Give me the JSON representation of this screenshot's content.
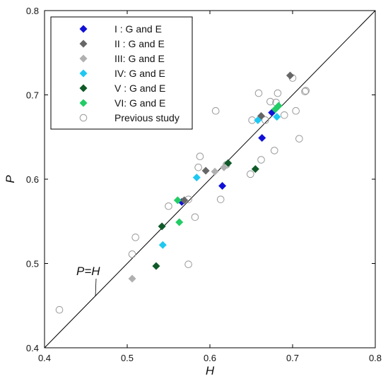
{
  "chart_data": {
    "type": "scatter",
    "title": "",
    "xlabel": "H",
    "ylabel": "P",
    "xlim": [
      0.4,
      0.8
    ],
    "ylim": [
      0.4,
      0.8
    ],
    "xticks": [
      "0.4",
      "0.5",
      "0.6",
      "0.7",
      "0.8"
    ],
    "yticks": [
      "0.4",
      "0.5",
      "0.6",
      "0.7",
      "0.8"
    ],
    "grid": false,
    "legend_position": "top-left",
    "reference_line": {
      "label": "P=H",
      "from": [
        0.4,
        0.4
      ],
      "to": [
        0.8,
        0.8
      ]
    },
    "series": [
      {
        "name": "I  : G and E",
        "marker": "diamond",
        "color": "#1010d8",
        "points": [
          [
            0.566,
            0.573
          ],
          [
            0.615,
            0.592
          ],
          [
            0.663,
            0.649
          ],
          [
            0.675,
            0.679
          ]
        ]
      },
      {
        "name": "II : G and E",
        "marker": "diamond",
        "color": "#666666",
        "points": [
          [
            0.569,
            0.575
          ],
          [
            0.595,
            0.61
          ],
          [
            0.662,
            0.675
          ],
          [
            0.697,
            0.723
          ]
        ]
      },
      {
        "name": "III: G and E",
        "marker": "diamond",
        "color": "#b0b0b0",
        "points": [
          [
            0.506,
            0.482
          ],
          [
            0.606,
            0.609
          ],
          [
            0.617,
            0.614
          ]
        ]
      },
      {
        "name": "IV: G and E",
        "marker": "diamond",
        "color": "#1ec8f0",
        "points": [
          [
            0.543,
            0.522
          ],
          [
            0.584,
            0.602
          ],
          [
            0.658,
            0.67
          ],
          [
            0.681,
            0.674
          ]
        ]
      },
      {
        "name": "V : G and E",
        "marker": "diamond",
        "color": "#0f5a28",
        "points": [
          [
            0.535,
            0.497
          ],
          [
            0.542,
            0.544
          ],
          [
            0.622,
            0.619
          ],
          [
            0.655,
            0.612
          ]
        ]
      },
      {
        "name": "VI: G and E",
        "marker": "diamond",
        "color": "#22cc66",
        "points": [
          [
            0.561,
            0.575
          ],
          [
            0.563,
            0.549
          ],
          [
            0.679,
            0.683
          ],
          [
            0.683,
            0.687
          ]
        ]
      },
      {
        "name": "Previous study",
        "marker": "open-circle",
        "color": "#9a9a9a",
        "points": [
          [
            0.418,
            0.445
          ],
          [
            0.506,
            0.511
          ],
          [
            0.51,
            0.531
          ],
          [
            0.55,
            0.568
          ],
          [
            0.574,
            0.576
          ],
          [
            0.574,
            0.499
          ],
          [
            0.582,
            0.555
          ],
          [
            0.586,
            0.614
          ],
          [
            0.588,
            0.627
          ],
          [
            0.607,
            0.681
          ],
          [
            0.613,
            0.576
          ],
          [
            0.62,
            0.617
          ],
          [
            0.649,
            0.606
          ],
          [
            0.651,
            0.67
          ],
          [
            0.659,
            0.702
          ],
          [
            0.662,
            0.623
          ],
          [
            0.667,
            0.67
          ],
          [
            0.673,
            0.692
          ],
          [
            0.678,
            0.634
          ],
          [
            0.68,
            0.691
          ],
          [
            0.682,
            0.702
          ],
          [
            0.69,
            0.676
          ],
          [
            0.7,
            0.72
          ],
          [
            0.704,
            0.681
          ],
          [
            0.708,
            0.648
          ],
          [
            0.715,
            0.704
          ],
          [
            0.716,
            0.705
          ]
        ]
      }
    ]
  }
}
